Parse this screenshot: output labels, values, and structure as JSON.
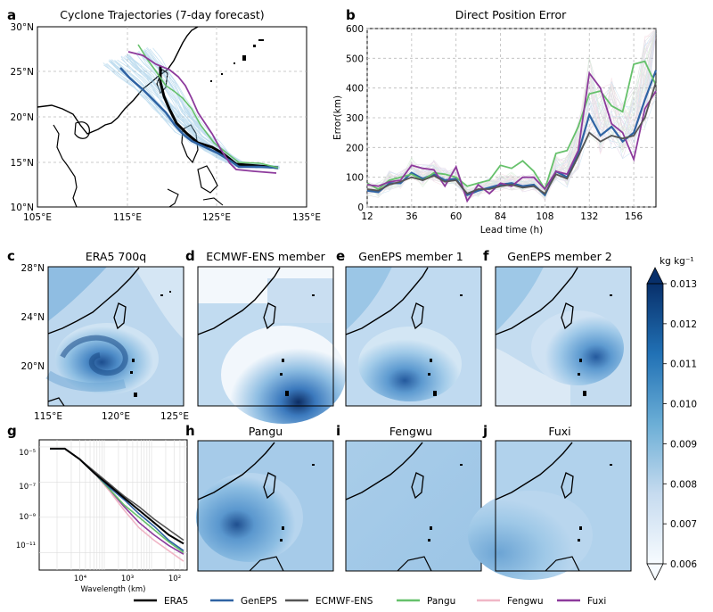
{
  "panels": {
    "a": {
      "letter": "a",
      "title": "Cyclone Trajectories (7-day forecast)",
      "xticks": [
        "105°E",
        "115°E",
        "125°E",
        "135°E"
      ],
      "yticks": [
        "30°N",
        "25°N",
        "20°N",
        "15°N",
        "10°N"
      ]
    },
    "b": {
      "letter": "b",
      "title": "Direct Position Error",
      "xlabel": "Lead time (h)",
      "ylabel": "Error(km)",
      "xticks": [
        "12",
        "36",
        "60",
        "84",
        "108",
        "132",
        "156"
      ],
      "yticks": [
        "0",
        "100",
        "200",
        "300",
        "400",
        "500",
        "600"
      ]
    },
    "c": {
      "letter": "c",
      "title": "ERA5 700q"
    },
    "d": {
      "letter": "d",
      "title": "ECMWF-ENS member"
    },
    "e": {
      "letter": "e",
      "title": "GenEPS member 1"
    },
    "f": {
      "letter": "f",
      "title": "GenEPS member 2"
    },
    "g": {
      "letter": "g",
      "xlabel": "Wavelength (km)",
      "yticks": [
        "10⁻⁵",
        "10⁻⁷",
        "10⁻⁹",
        "10⁻¹¹"
      ],
      "xticks": [
        "10⁴",
        "10³",
        "10²"
      ]
    },
    "h": {
      "letter": "h",
      "title": "Pangu"
    },
    "i": {
      "letter": "i",
      "title": "Fengwu"
    },
    "j": {
      "letter": "j",
      "title": "Fuxi"
    },
    "map_yticks": [
      "28°N",
      "24°N",
      "20°N"
    ],
    "map_xticks": [
      "115°E",
      "120°E",
      "125°E"
    ]
  },
  "colorbar": {
    "unit": "kg kg⁻¹",
    "ticks": [
      "0.013",
      "0.012",
      "0.011",
      "0.010",
      "0.009",
      "0.008",
      "0.007",
      "0.006"
    ],
    "min": 0.006,
    "max": 0.013
  },
  "legend": [
    {
      "name": "ERA5",
      "color": "#000000"
    },
    {
      "name": "GenEPS",
      "color": "#2f63a3"
    },
    {
      "name": "ECMWF-ENS",
      "color": "#555555"
    },
    {
      "name": "Pangu",
      "color": "#66c16b"
    },
    {
      "name": "Fengwu",
      "color": "#f0b6c6"
    },
    {
      "name": "Fuxi",
      "color": "#8d3a9c"
    }
  ],
  "chart_data": [
    {
      "type": "line",
      "title": "Direct Position Error",
      "xlabel": "Lead time (h)",
      "ylabel": "Error(km)",
      "xlim": [
        12,
        168
      ],
      "ylim": [
        0,
        600
      ],
      "x": [
        12,
        18,
        24,
        30,
        36,
        42,
        48,
        54,
        60,
        66,
        72,
        78,
        84,
        90,
        96,
        102,
        108,
        114,
        120,
        126,
        132,
        138,
        144,
        150,
        156,
        162,
        168
      ],
      "series": [
        {
          "name": "GenEPS",
          "values": [
            55,
            50,
            80,
            80,
            115,
            95,
            110,
            90,
            95,
            40,
            55,
            65,
            75,
            80,
            70,
            75,
            40,
            120,
            100,
            180,
            310,
            240,
            270,
            220,
            250,
            360,
            460
          ]
        },
        {
          "name": "Pangu",
          "values": [
            80,
            60,
            90,
            100,
            110,
            90,
            115,
            110,
            100,
            70,
            80,
            90,
            140,
            130,
            155,
            120,
            60,
            180,
            190,
            270,
            380,
            390,
            340,
            320,
            480,
            490,
            410
          ]
        },
        {
          "name": "Fuxi",
          "values": [
            75,
            70,
            85,
            90,
            140,
            130,
            125,
            70,
            135,
            20,
            75,
            45,
            80,
            70,
            100,
            100,
            60,
            120,
            110,
            190,
            450,
            400,
            280,
            250,
            160,
            330,
            390
          ]
        },
        {
          "name": "ECMWF-ENS",
          "values": [
            60,
            55,
            75,
            85,
            100,
            90,
            105,
            85,
            90,
            45,
            60,
            60,
            70,
            75,
            65,
            70,
            45,
            110,
            95,
            170,
            250,
            220,
            240,
            230,
            240,
            300,
            420
          ]
        }
      ]
    },
    {
      "type": "line",
      "xlabel": "Wavelength (km)",
      "series": [
        {
          "name": "ERA5",
          "values": [
            -5.1,
            -5.1,
            -5.7,
            -6.5,
            -7.2,
            -7.9,
            -8.6,
            -9.3,
            -10.0,
            -10.5
          ]
        },
        {
          "name": "GenEPS",
          "values": [
            -5.1,
            -5.1,
            -5.7,
            -6.5,
            -7.3,
            -8.0,
            -8.8,
            -9.5,
            -10.3,
            -10.9
          ]
        },
        {
          "name": "ECMWF-ENS",
          "values": [
            -5.1,
            -5.1,
            -5.7,
            -6.4,
            -7.1,
            -7.8,
            -8.4,
            -9.1,
            -9.7,
            -10.3
          ]
        },
        {
          "name": "Pangu",
          "values": [
            -5.1,
            -5.1,
            -5.7,
            -6.5,
            -7.4,
            -8.3,
            -9.0,
            -9.7,
            -10.4,
            -11.0
          ]
        },
        {
          "name": "Fengwu",
          "values": [
            -5.1,
            -5.1,
            -5.7,
            -6.5,
            -7.5,
            -8.6,
            -9.6,
            -10.3,
            -10.9,
            -11.5
          ]
        },
        {
          "name": "Fuxi",
          "values": [
            -5.1,
            -5.1,
            -5.7,
            -6.5,
            -7.4,
            -8.4,
            -9.3,
            -10.0,
            -10.6,
            -11.1
          ]
        }
      ]
    }
  ]
}
